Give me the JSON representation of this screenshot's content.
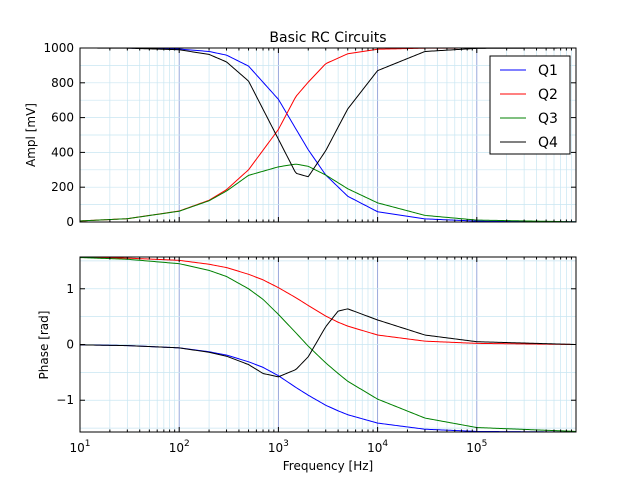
{
  "chart_data": [
    {
      "type": "line",
      "title": "Basic RC Circuits",
      "xlabel": "",
      "ylabel": "Ampl [mV]",
      "xscale": "log",
      "xlim": [
        10,
        1000000
      ],
      "ylim": [
        0,
        1000
      ],
      "yticks": [
        "0",
        "200",
        "400",
        "600",
        "800",
        "1000"
      ],
      "yticks_values": [
        0,
        200,
        400,
        600,
        800,
        1000
      ],
      "grid": true,
      "legend": "top-right",
      "x": [
        10,
        30,
        100,
        200,
        300,
        500,
        1000,
        1500,
        2000,
        3000,
        5000,
        10000,
        30000,
        100000,
        1000000
      ],
      "series": [
        {
          "name": "Q1",
          "color": "#0000ff",
          "values": [
            1000,
            1000,
            994,
            980,
            959,
            896,
            705,
            535,
            415,
            270,
            148,
            59,
            18,
            5,
            1
          ]
        },
        {
          "name": "Q2",
          "color": "#ff0000",
          "values": [
            6,
            19,
            63,
            125,
            186,
            300,
            532,
            721,
            804,
            910,
            967,
            993,
            999,
            1000,
            1000
          ]
        },
        {
          "name": "Q3",
          "color": "#008000",
          "values": [
            6,
            19,
            62,
            122,
            178,
            268,
            317,
            333,
            320,
            270,
            191,
            110,
            38,
            11,
            1
          ]
        },
        {
          "name": "Q4",
          "color": "#000000",
          "values": [
            1000,
            999,
            990,
            963,
            920,
            810,
            476,
            280,
            260,
            410,
            650,
            870,
            980,
            998,
            1000
          ]
        }
      ]
    },
    {
      "type": "line",
      "title": "",
      "xlabel": "Frequency [Hz]",
      "ylabel": "Phase [rad]",
      "xscale": "log",
      "xlim": [
        10,
        1000000
      ],
      "ylim": [
        -1.57,
        1.57
      ],
      "yticks": [
        "−1",
        "0",
        "1"
      ],
      "yticks_values": [
        -1,
        0,
        1
      ],
      "xticks": [
        "10",
        "100",
        "1000",
        "10000",
        "100000"
      ],
      "xticks_values": [
        10,
        100,
        1000,
        10000,
        100000
      ],
      "grid": true,
      "legend": "none",
      "x": [
        10,
        30,
        100,
        200,
        300,
        500,
        700,
        1000,
        1500,
        2000,
        3000,
        4000,
        5000,
        10000,
        30000,
        100000,
        1000000
      ],
      "series": [
        {
          "name": "Q1",
          "color": "#0000ff",
          "values": [
            -0.006,
            -0.019,
            -0.06,
            -0.13,
            -0.19,
            -0.31,
            -0.41,
            -0.56,
            -0.77,
            -0.91,
            -1.09,
            -1.19,
            -1.26,
            -1.41,
            -1.52,
            -1.56,
            -1.57
          ]
        },
        {
          "name": "Q2",
          "color": "#ff0000",
          "values": [
            1.564,
            1.55,
            1.51,
            1.44,
            1.38,
            1.26,
            1.16,
            1.02,
            0.84,
            0.7,
            0.51,
            0.4,
            0.33,
            0.17,
            0.06,
            0.02,
            0.0
          ]
        },
        {
          "name": "Q3",
          "color": "#008000",
          "values": [
            1.56,
            1.53,
            1.45,
            1.33,
            1.22,
            1.0,
            0.81,
            0.54,
            0.21,
            -0.03,
            -0.33,
            -0.52,
            -0.66,
            -0.98,
            -1.32,
            -1.49,
            -1.56
          ]
        },
        {
          "name": "Q4",
          "color": "#000000",
          "values": [
            -0.006,
            -0.02,
            -0.06,
            -0.14,
            -0.21,
            -0.36,
            -0.52,
            -0.58,
            -0.45,
            -0.22,
            0.32,
            0.6,
            0.64,
            0.44,
            0.17,
            0.05,
            0.0
          ]
        }
      ]
    }
  ]
}
